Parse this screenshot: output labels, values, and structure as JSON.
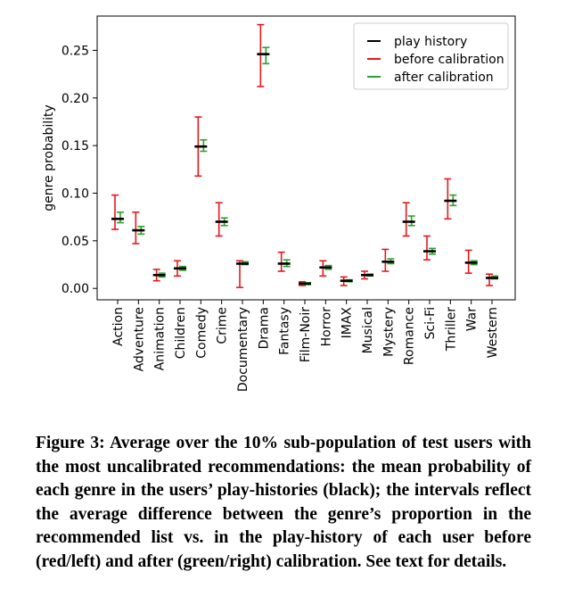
{
  "chart_data": {
    "type": "errorbar",
    "ylabel": "genre probability",
    "xlabel": "",
    "ylim": [
      -0.012,
      0.286
    ],
    "yticks": [
      "0.00",
      "0.05",
      "0.10",
      "0.15",
      "0.20",
      "0.25"
    ],
    "legend_position": "top-right",
    "categories": [
      "Action",
      "Adventure",
      "Animation",
      "Children",
      "Comedy",
      "Crime",
      "Documentary",
      "Drama",
      "Fantasy",
      "Film-Noir",
      "Horror",
      "IMAX",
      "Musical",
      "Mystery",
      "Romance",
      "Sci-Fi",
      "Thriller",
      "War",
      "Western"
    ],
    "series": [
      {
        "name": "play history",
        "color": "#000000",
        "values": [
          0.073,
          0.061,
          0.014,
          0.021,
          0.149,
          0.07,
          0.026,
          0.246,
          0.026,
          0.005,
          0.022,
          0.008,
          0.014,
          0.028,
          0.07,
          0.039,
          0.092,
          0.027,
          0.011
        ]
      },
      {
        "name": "before calibration",
        "color": "#e41a1c",
        "low": [
          0.062,
          0.047,
          0.008,
          0.013,
          0.118,
          0.055,
          0.001,
          0.212,
          0.018,
          0.003,
          0.013,
          0.003,
          0.01,
          0.018,
          0.055,
          0.03,
          0.073,
          0.016,
          0.003
        ],
        "high": [
          0.098,
          0.08,
          0.02,
          0.029,
          0.18,
          0.09,
          0.029,
          0.277,
          0.038,
          0.007,
          0.029,
          0.012,
          0.018,
          0.041,
          0.09,
          0.055,
          0.115,
          0.04,
          0.015
        ]
      },
      {
        "name": "after calibration",
        "color": "#2ca02c",
        "low": [
          0.069,
          0.057,
          0.012,
          0.019,
          0.144,
          0.066,
          0.025,
          0.236,
          0.023,
          0.004,
          0.02,
          0.007,
          0.013,
          0.026,
          0.066,
          0.036,
          0.087,
          0.025,
          0.01
        ],
        "high": [
          0.08,
          0.065,
          0.016,
          0.023,
          0.156,
          0.074,
          0.028,
          0.253,
          0.03,
          0.006,
          0.024,
          0.009,
          0.015,
          0.031,
          0.076,
          0.042,
          0.098,
          0.029,
          0.013
        ]
      }
    ]
  },
  "caption": "Figure 3: Average over the 10% sub-population of test users with the most uncalibrated recommendations: the mean probability of each genre in the users’ play-histories (black); the intervals reflect the average difference between the genre’s proportion in the recommended list vs. in the play-history of each user before (red/left) and after (green/right) calibration. See text for details."
}
